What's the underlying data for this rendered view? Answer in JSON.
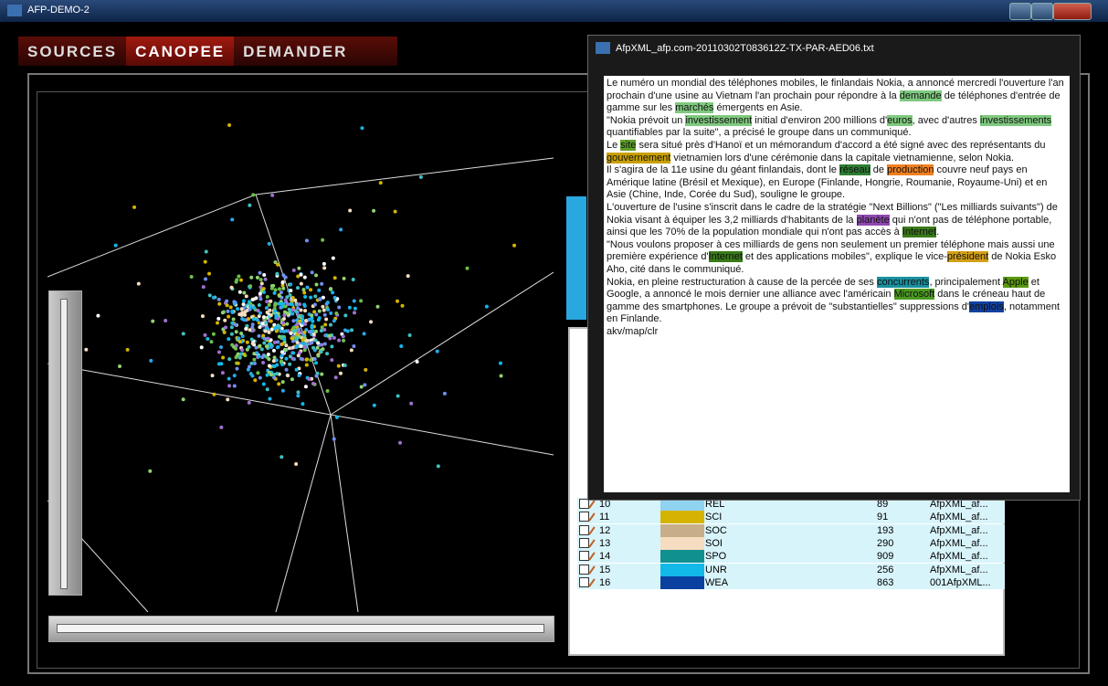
{
  "window": {
    "title": "AFP-DEMO-2"
  },
  "tabs": [
    "SOURCES",
    "CANOPEE",
    "DEMANDER"
  ],
  "table": {
    "rows": [
      {
        "id": 10,
        "label": "REL",
        "count": 89,
        "source": "AfpXML_af...",
        "color": "#8fd3f0"
      },
      {
        "id": 11,
        "label": "SCI",
        "count": 91,
        "source": "AfpXML_af...",
        "color": "#d4b400"
      },
      {
        "id": 12,
        "label": "SOC",
        "count": 193,
        "source": "AfpXML_af...",
        "color": "#c8ae88"
      },
      {
        "id": 13,
        "label": "SOI",
        "count": 290,
        "source": "AfpXML_af...",
        "color": "#f6dcc0"
      },
      {
        "id": 14,
        "label": "SPO",
        "count": 909,
        "source": "AfpXML_af...",
        "color": "#10908f"
      },
      {
        "id": 15,
        "label": "UNR",
        "count": 256,
        "source": "AfpXML_af...",
        "color": "#12b8e8"
      },
      {
        "id": 16,
        "label": "WEA",
        "count": 863,
        "source": "001AfpXML...",
        "color": "#0a40a0"
      }
    ]
  },
  "document": {
    "title": "AfpXML_afp.com-20110302T083612Z-TX-PAR-AED06.txt",
    "paragraphs": [
      [
        {
          "text": "Le numéro un mondial des téléphones mobiles, le finlandais Nokia, a annoncé mercredi l'ouverture l'an prochain d'une usine au Vietnam l'an prochain pour répondre à la "
        },
        {
          "text": "demande",
          "highlight": "#7fc97f"
        },
        {
          "text": " de téléphones d'entrée de gamme sur les "
        },
        {
          "text": "marchés",
          "highlight": "#7fc97f"
        },
        {
          "text": " émergents en Asie."
        }
      ],
      [
        {
          "text": "\"Nokia prévoit un "
        },
        {
          "text": "investissement",
          "highlight": "#7fc97f"
        },
        {
          "text": " initial d'environ 200 millions d'"
        },
        {
          "text": "euros",
          "highlight": "#7fc97f"
        },
        {
          "text": ", avec d'autres "
        },
        {
          "text": "investissements",
          "highlight": "#7fc97f"
        },
        {
          "text": " quantifiables par la suite\", a précisé le groupe dans un communiqué."
        }
      ],
      [
        {
          "text": "Le "
        },
        {
          "text": "site",
          "highlight": "#5fa02a"
        },
        {
          "text": " sera situé près d'Hanoï et un mémorandum d'accord a été signé avec des représentants du "
        },
        {
          "text": "gouvernement",
          "highlight": "#c8a000"
        },
        {
          "text": " vietnamien lors d'une cérémonie dans la capitale vietnamienne, selon Nokia."
        }
      ],
      [
        {
          "text": "Il s'agira de la 11e usine du géant finlandais, dont le "
        },
        {
          "text": "réseau",
          "highlight": "#2e7d32"
        },
        {
          "text": " de "
        },
        {
          "text": "production",
          "highlight": "#f08020"
        },
        {
          "text": " couvre neuf pays en Amérique latine (Brésil et Mexique), en Europe (Finlande, Hongrie, Roumanie, Royaume-Uni) et en Asie (Chine, Inde, Corée du Sud), souligne le groupe."
        }
      ],
      [
        {
          "text": "L'ouverture de l'usine s'inscrit dans le cadre de la stratégie \"Next Billions\" (\"Les milliards suivants\") de Nokia visant à équiper les 3,2 milliards d'habitants de la "
        },
        {
          "text": "planète",
          "highlight": "#9048b0"
        },
        {
          "text": " qui n'ont pas de téléphone portable, ainsi que les 70% de la population mondiale qui n'ont pas accès à "
        },
        {
          "text": "Internet",
          "highlight": "#3a7a1a"
        },
        {
          "text": "."
        }
      ],
      [
        {
          "text": "\"Nous voulons proposer à ces milliards de gens non seulement un premier téléphone mais aussi une première expérience d'"
        },
        {
          "text": "Internet",
          "highlight": "#3a7a1a"
        },
        {
          "text": " et des applications mobiles\", explique le vice-"
        },
        {
          "text": "président",
          "highlight": "#d4a017"
        },
        {
          "text": " de Nokia Esko Aho, cité dans le communiqué."
        }
      ],
      [
        {
          "text": "Nokia, en pleine restructuration à cause de la percée de ses "
        },
        {
          "text": "concurrents",
          "highlight": "#1a90a0"
        },
        {
          "text": ", principalement "
        },
        {
          "text": "Apple",
          "highlight": "#5a9a10"
        },
        {
          "text": " et Google, a annoncé le mois dernier une alliance avec l'américain "
        },
        {
          "text": "Microsoft",
          "highlight": "#4a9a20"
        },
        {
          "text": " dans le créneau haut de gamme des smartphones. Le groupe a prévoit de \"substantielles\" suppressions d'"
        },
        {
          "text": "emplois",
          "highlight": "#1040a0"
        },
        {
          "text": ", notamment en Finlande."
        }
      ],
      [
        {
          "text": "akv/map/clr"
        }
      ]
    ]
  }
}
